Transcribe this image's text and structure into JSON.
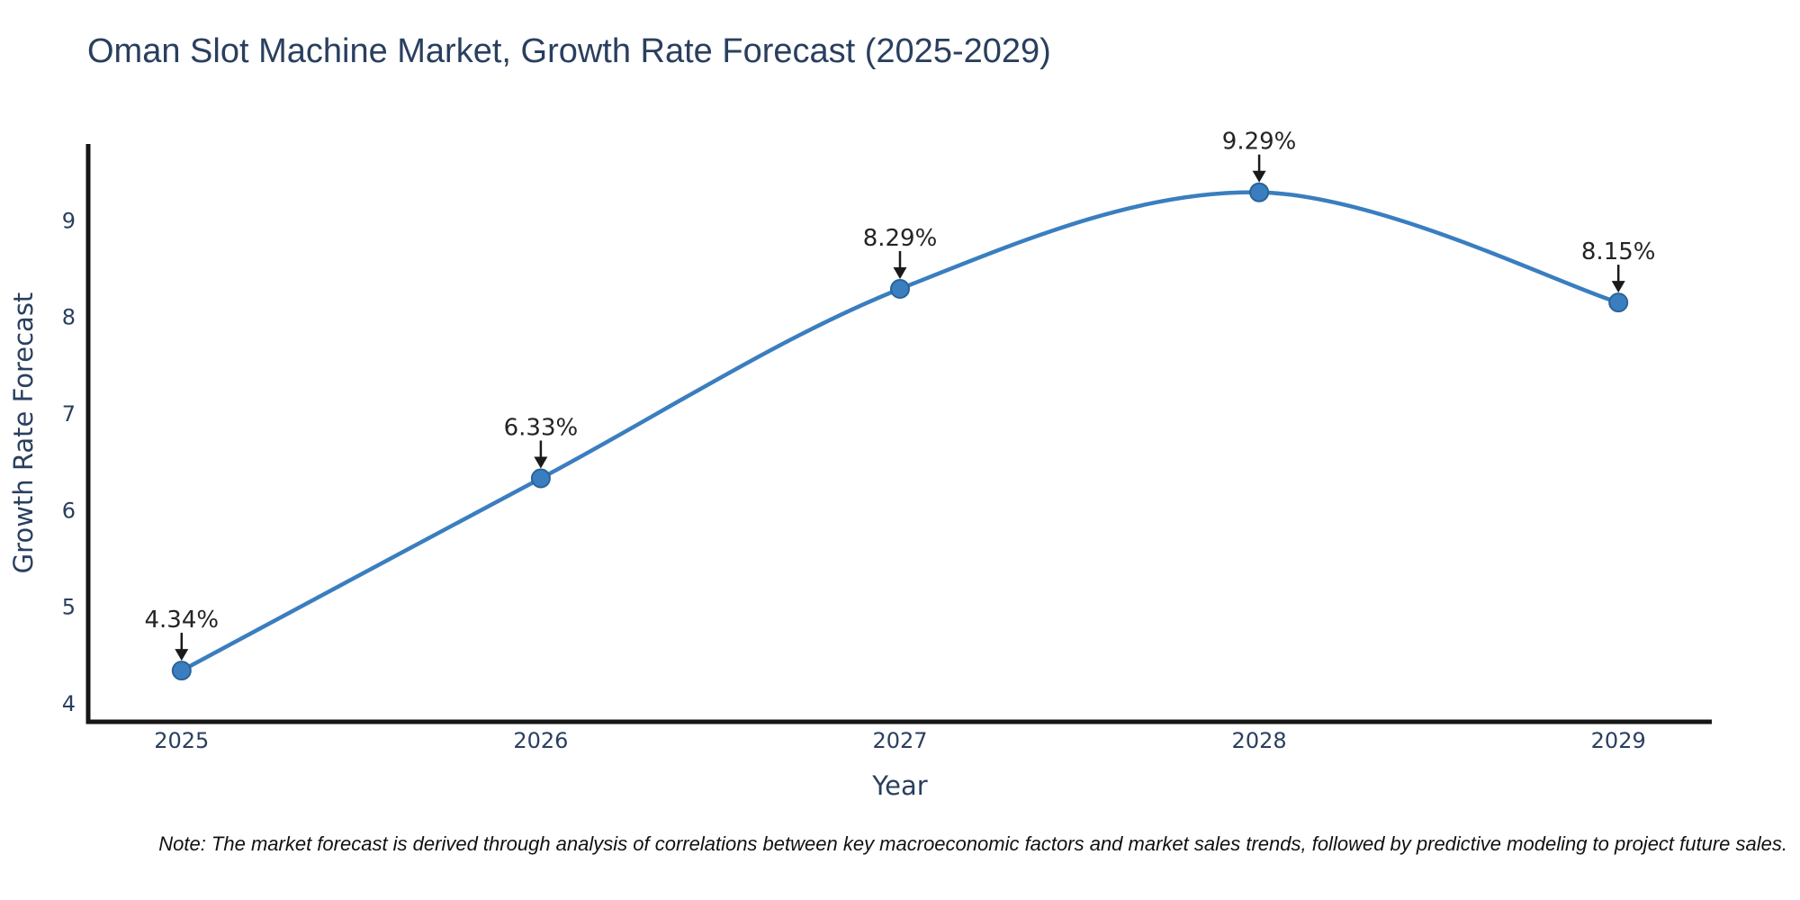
{
  "footer": {
    "note": "Note: The market forecast is derived through analysis of correlations between key macroeconomic factors and market sales trends, followed by predictive modeling to project future sales."
  },
  "colors": {
    "background": "#ffffff",
    "trace": "#3a7ebf",
    "marker_fill": "#3a7ebf",
    "marker_edge": "#2a6399",
    "axis_line": "#161616",
    "axis_text": "#2a3f5f",
    "annotation_text": "#242424",
    "arrow": "#1a1a1a",
    "title_text": "#2a3f5f"
  },
  "chart_data": {
    "type": "line",
    "title": "Oman Slot Machine Market, Growth Rate Forecast (2025-2029)",
    "xlabel": "Year",
    "ylabel": "Growth Rate Forecast",
    "x": [
      2025,
      2026,
      2027,
      2028,
      2029
    ],
    "values": [
      4.34,
      6.33,
      8.29,
      9.29,
      8.15
    ],
    "point_labels": [
      "4.34%",
      "6.33%",
      "8.29%",
      "9.29%",
      "8.15%"
    ],
    "xticks": [
      "2025",
      "2026",
      "2027",
      "2028",
      "2029"
    ],
    "yticks": [
      4,
      5,
      6,
      7,
      8,
      9
    ],
    "xlim": [
      2024.74,
      2029.26
    ],
    "ylim": [
      3.81,
      9.79
    ],
    "grid": false,
    "legend": "none",
    "line_shape": "spline",
    "markers": true,
    "annotation_style": "percent value label with downward arrow above each data point"
  }
}
